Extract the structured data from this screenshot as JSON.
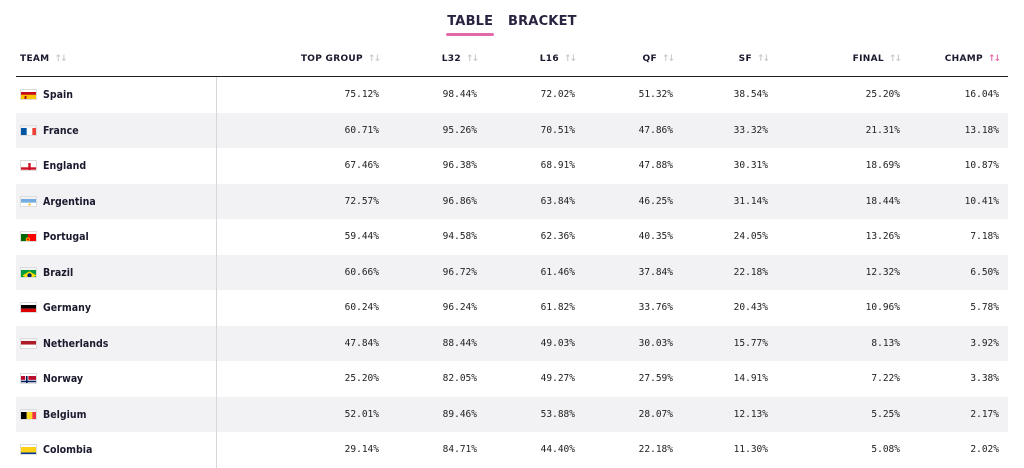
{
  "tabs": [
    {
      "label": "TABLE",
      "active": true
    },
    {
      "label": "BRACKET",
      "active": false
    }
  ],
  "columns": [
    {
      "label": "TEAM",
      "sort": "none"
    },
    {
      "label": "TOP GROUP",
      "sort": "none"
    },
    {
      "label": "L32",
      "sort": "none"
    },
    {
      "label": "L16",
      "sort": "none"
    },
    {
      "label": "QF",
      "sort": "none"
    },
    {
      "label": "SF",
      "sort": "none"
    },
    {
      "label": "FINAL",
      "sort": "none"
    },
    {
      "label": "CHAMP",
      "sort": "descending"
    }
  ],
  "accent_color": "#e36aa8",
  "rows": [
    {
      "team": "Spain",
      "flag": "spain-flag-icon",
      "values": [
        "75.12%",
        "98.44%",
        "72.02%",
        "51.32%",
        "38.54%",
        "25.20%",
        "16.04%"
      ]
    },
    {
      "team": "France",
      "flag": "france-flag-icon",
      "values": [
        "60.71%",
        "95.26%",
        "70.51%",
        "47.86%",
        "33.32%",
        "21.31%",
        "13.18%"
      ]
    },
    {
      "team": "England",
      "flag": "england-flag-icon",
      "values": [
        "67.46%",
        "96.38%",
        "68.91%",
        "47.88%",
        "30.31%",
        "18.69%",
        "10.87%"
      ]
    },
    {
      "team": "Argentina",
      "flag": "argentina-flag-icon",
      "values": [
        "72.57%",
        "96.86%",
        "63.84%",
        "46.25%",
        "31.14%",
        "18.44%",
        "10.41%"
      ]
    },
    {
      "team": "Portugal",
      "flag": "portugal-flag-icon",
      "values": [
        "59.44%",
        "94.58%",
        "62.36%",
        "40.35%",
        "24.05%",
        "13.26%",
        "7.18%"
      ]
    },
    {
      "team": "Brazil",
      "flag": "brazil-flag-icon",
      "values": [
        "60.66%",
        "96.72%",
        "61.46%",
        "37.84%",
        "22.18%",
        "12.32%",
        "6.50%"
      ]
    },
    {
      "team": "Germany",
      "flag": "germany-flag-icon",
      "values": [
        "60.24%",
        "96.24%",
        "61.82%",
        "33.76%",
        "20.43%",
        "10.96%",
        "5.78%"
      ]
    },
    {
      "team": "Netherlands",
      "flag": "netherlands-flag-icon",
      "values": [
        "47.84%",
        "88.44%",
        "49.03%",
        "30.03%",
        "15.77%",
        "8.13%",
        "3.92%"
      ]
    },
    {
      "team": "Norway",
      "flag": "norway-flag-icon",
      "values": [
        "25.20%",
        "82.05%",
        "49.27%",
        "27.59%",
        "14.91%",
        "7.22%",
        "3.38%"
      ]
    },
    {
      "team": "Belgium",
      "flag": "belgium-flag-icon",
      "values": [
        "52.01%",
        "89.46%",
        "53.88%",
        "28.07%",
        "12.13%",
        "5.25%",
        "2.17%"
      ]
    },
    {
      "team": "Colombia",
      "flag": "colombia-flag-icon",
      "values": [
        "29.14%",
        "84.71%",
        "44.40%",
        "22.18%",
        "11.30%",
        "5.08%",
        "2.02%"
      ]
    }
  ]
}
